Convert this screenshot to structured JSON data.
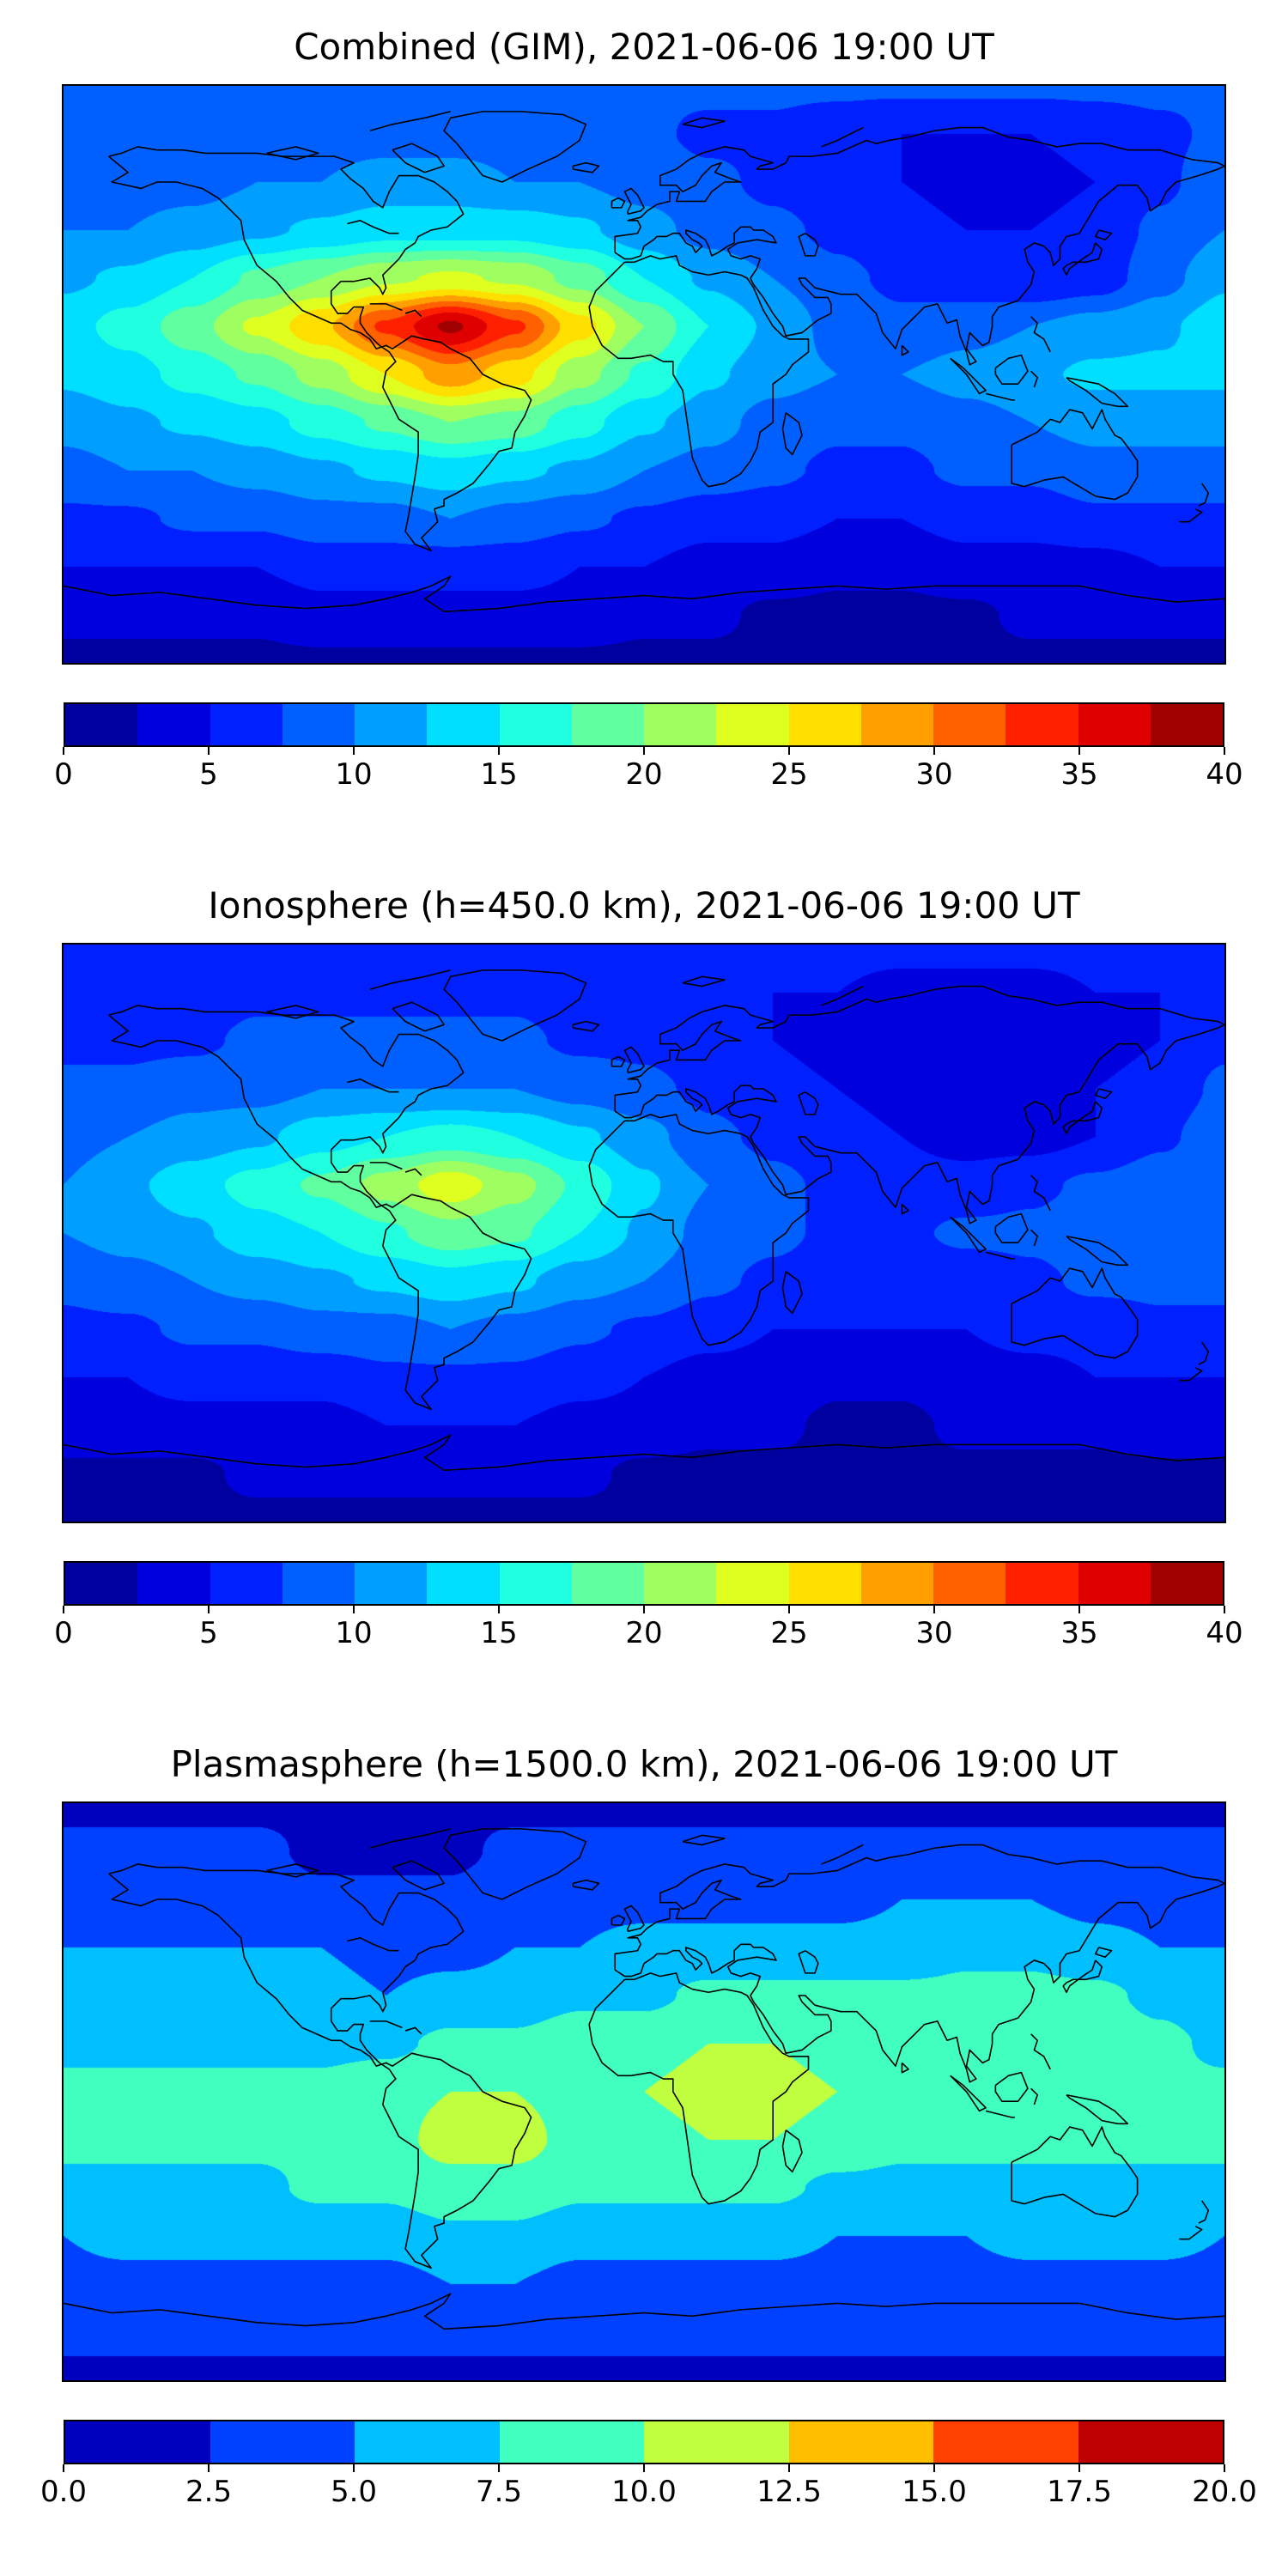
{
  "chart_data": [
    {
      "type": "heatmap",
      "title": "Combined (GIM), 2021-06-06 19:00 UT",
      "projection": "equirectangular",
      "lon_range": [
        -180,
        180
      ],
      "lat_range": [
        -90,
        90
      ],
      "colormap": "jet",
      "colorbar": {
        "min": 0,
        "max": 40,
        "segments": 16,
        "ticks": [
          "0",
          "5",
          "10",
          "15",
          "20",
          "25",
          "30",
          "35",
          "40"
        ]
      },
      "grid": {
        "lons": [
          -180,
          -160,
          -140,
          -120,
          -100,
          -80,
          -60,
          -40,
          -20,
          0,
          20,
          40,
          60,
          80,
          100,
          120,
          140,
          160,
          180
        ],
        "lats": [
          90,
          75,
          60,
          45,
          30,
          15,
          0,
          -15,
          -30,
          -45,
          -60,
          -75,
          -90
        ],
        "values": [
          [
            8,
            8,
            8,
            8,
            8,
            8,
            8,
            8,
            8,
            8,
            8,
            8,
            8,
            8,
            8,
            8,
            8,
            8,
            8
          ],
          [
            8,
            8,
            8,
            9,
            9,
            9,
            9,
            9,
            8,
            8,
            7,
            7,
            6,
            5,
            5,
            5,
            6,
            7,
            8
          ],
          [
            9,
            9,
            9,
            10,
            10,
            11,
            11,
            10,
            10,
            9,
            8,
            7,
            6,
            5,
            4,
            4,
            5,
            7,
            9
          ],
          [
            10,
            10,
            11,
            12,
            13,
            14,
            14,
            14,
            13,
            11,
            9,
            8,
            7,
            6,
            5,
            5,
            6,
            8,
            10
          ],
          [
            12,
            13,
            15,
            18,
            20,
            22,
            23,
            22,
            19,
            15,
            12,
            10,
            8,
            7,
            6,
            5,
            6,
            9,
            12
          ],
          [
            14,
            16,
            19,
            23,
            27,
            33,
            38,
            33,
            26,
            20,
            15,
            12,
            9,
            8,
            9,
            10,
            11,
            12,
            14
          ],
          [
            13,
            14,
            16,
            18,
            21,
            25,
            29,
            26,
            21,
            17,
            13,
            11,
            10,
            10,
            11,
            12,
            13,
            13,
            13
          ],
          [
            11,
            12,
            13,
            14,
            16,
            18,
            20,
            19,
            16,
            13,
            11,
            9,
            8,
            8,
            9,
            10,
            11,
            11,
            11
          ],
          [
            9,
            10,
            10,
            11,
            12,
            13,
            14,
            13,
            12,
            10,
            9,
            8,
            7,
            7,
            8,
            8,
            9,
            9,
            9
          ],
          [
            7,
            7,
            8,
            8,
            9,
            9,
            10,
            9,
            8,
            7,
            6,
            6,
            5,
            5,
            6,
            6,
            7,
            7,
            7
          ],
          [
            5,
            5,
            5,
            5,
            6,
            6,
            6,
            6,
            5,
            5,
            4,
            4,
            3,
            3,
            4,
            4,
            4,
            5,
            5
          ],
          [
            3,
            3,
            3,
            3,
            4,
            4,
            4,
            4,
            4,
            3,
            3,
            2,
            2,
            2,
            2,
            3,
            3,
            3,
            3
          ],
          [
            2,
            2,
            2,
            2,
            2,
            2,
            2,
            2,
            2,
            2,
            2,
            2,
            2,
            2,
            2,
            2,
            2,
            2,
            2
          ]
        ]
      }
    },
    {
      "type": "heatmap",
      "title": "Ionosphere  (h=450.0 km), 2021-06-06 19:00 UT",
      "projection": "equirectangular",
      "lon_range": [
        -180,
        180
      ],
      "lat_range": [
        -90,
        90
      ],
      "colormap": "jet",
      "colorbar": {
        "min": 0,
        "max": 40,
        "segments": 16,
        "ticks": [
          "0",
          "5",
          "10",
          "15",
          "20",
          "25",
          "30",
          "35",
          "40"
        ]
      },
      "grid": {
        "lons": [
          -180,
          -160,
          -140,
          -120,
          -100,
          -80,
          -60,
          -40,
          -20,
          0,
          20,
          40,
          60,
          80,
          100,
          120,
          140,
          160,
          180
        ],
        "lats": [
          90,
          75,
          60,
          45,
          30,
          15,
          0,
          -15,
          -30,
          -45,
          -60,
          -75,
          -90
        ],
        "values": [
          [
            6,
            6,
            6,
            6,
            6,
            6,
            6,
            6,
            6,
            6,
            6,
            6,
            6,
            6,
            6,
            6,
            6,
            6,
            6
          ],
          [
            6,
            6,
            6,
            7,
            7,
            7,
            7,
            7,
            6,
            6,
            6,
            5,
            5,
            4,
            4,
            4,
            5,
            5,
            6
          ],
          [
            7,
            7,
            7,
            8,
            8,
            8,
            8,
            8,
            7,
            7,
            6,
            5,
            4,
            4,
            3,
            3,
            4,
            5,
            7
          ],
          [
            8,
            8,
            9,
            9,
            10,
            10,
            10,
            10,
            9,
            8,
            7,
            6,
            5,
            4,
            4,
            4,
            5,
            6,
            8
          ],
          [
            9,
            10,
            11,
            12,
            14,
            15,
            16,
            15,
            13,
            11,
            8,
            7,
            6,
            5,
            4,
            4,
            5,
            7,
            9
          ],
          [
            10,
            12,
            14,
            16,
            18,
            21,
            24,
            21,
            17,
            13,
            10,
            8,
            7,
            6,
            6,
            7,
            8,
            9,
            10
          ],
          [
            10,
            11,
            12,
            14,
            15,
            17,
            19,
            18,
            15,
            12,
            9,
            8,
            7,
            7,
            8,
            8,
            9,
            9,
            10
          ],
          [
            8,
            9,
            10,
            11,
            12,
            13,
            14,
            13,
            11,
            10,
            8,
            7,
            6,
            6,
            6,
            7,
            8,
            8,
            8
          ],
          [
            7,
            7,
            8,
            8,
            9,
            9,
            10,
            9,
            8,
            7,
            6,
            5,
            5,
            5,
            5,
            6,
            6,
            7,
            7
          ],
          [
            5,
            5,
            6,
            6,
            6,
            7,
            7,
            7,
            6,
            5,
            4,
            4,
            3,
            3,
            4,
            4,
            5,
            5,
            5
          ],
          [
            4,
            4,
            4,
            4,
            4,
            5,
            5,
            5,
            4,
            4,
            3,
            3,
            2,
            2,
            3,
            3,
            3,
            4,
            4
          ],
          [
            2,
            2,
            2,
            3,
            3,
            3,
            3,
            3,
            3,
            2,
            2,
            2,
            2,
            2,
            2,
            2,
            2,
            2,
            2
          ],
          [
            2,
            2,
            2,
            2,
            2,
            2,
            2,
            2,
            2,
            2,
            2,
            2,
            2,
            2,
            2,
            2,
            2,
            2,
            2
          ]
        ]
      }
    },
    {
      "type": "heatmap",
      "title": "Plasmasphere (h=1500.0 km), 2021-06-06 19:00 UT",
      "projection": "equirectangular",
      "lon_range": [
        -180,
        180
      ],
      "lat_range": [
        -90,
        90
      ],
      "colormap": "jet",
      "colorbar": {
        "min": 0,
        "max": 20,
        "segments": 8,
        "ticks": [
          "0.0",
          "2.5",
          "5.0",
          "7.5",
          "10.0",
          "12.5",
          "15.0",
          "17.5",
          "20.0"
        ]
      },
      "grid": {
        "lons": [
          -180,
          -160,
          -140,
          -120,
          -100,
          -80,
          -60,
          -40,
          -20,
          0,
          20,
          40,
          60,
          80,
          100,
          120,
          140,
          160,
          180
        ],
        "lats": [
          90,
          75,
          60,
          45,
          30,
          15,
          0,
          -15,
          -30,
          -45,
          -60,
          -75,
          -90
        ],
        "values": [
          [
            2,
            2,
            2,
            2,
            2,
            2,
            2,
            2,
            2,
            2,
            2,
            2,
            2,
            2,
            2,
            2,
            2,
            2,
            2
          ],
          [
            3,
            3,
            3,
            3,
            2,
            2,
            2,
            3,
            3,
            3,
            3,
            3,
            3,
            3,
            3,
            3,
            3,
            3,
            3
          ],
          [
            4,
            4,
            4,
            4,
            3,
            3,
            3,
            4,
            4,
            4,
            4,
            4,
            4,
            5,
            5,
            5,
            4,
            4,
            4
          ],
          [
            5,
            5,
            5,
            5,
            5,
            4,
            4,
            5,
            5,
            6,
            6,
            6,
            6,
            6,
            7,
            7,
            6,
            5,
            5
          ],
          [
            6,
            6,
            6,
            6,
            6,
            5,
            6,
            6,
            7,
            7,
            8,
            8,
            8,
            8,
            8,
            8,
            8,
            7,
            6
          ],
          [
            7,
            7,
            7,
            7,
            7,
            7,
            8,
            8,
            9,
            9,
            10,
            10,
            9,
            9,
            9,
            10,
            9,
            8,
            7
          ],
          [
            8,
            8,
            8,
            8,
            8,
            9,
            10,
            10,
            9,
            10,
            11,
            11,
            10,
            9,
            9,
            9,
            9,
            8,
            8
          ],
          [
            8,
            8,
            8,
            8,
            8,
            9,
            11,
            11,
            9,
            9,
            10,
            10,
            9,
            8,
            8,
            8,
            8,
            8,
            8
          ],
          [
            7,
            7,
            7,
            7,
            8,
            8,
            9,
            9,
            8,
            8,
            8,
            8,
            7,
            7,
            7,
            7,
            7,
            7,
            7
          ],
          [
            5,
            6,
            6,
            6,
            6,
            6,
            7,
            7,
            6,
            6,
            6,
            6,
            5,
            5,
            5,
            6,
            6,
            6,
            5
          ],
          [
            4,
            4,
            4,
            4,
            4,
            4,
            5,
            5,
            4,
            4,
            4,
            4,
            4,
            4,
            4,
            4,
            4,
            4,
            4
          ],
          [
            3,
            3,
            3,
            3,
            3,
            3,
            3,
            3,
            3,
            3,
            3,
            3,
            3,
            3,
            3,
            3,
            3,
            3,
            3
          ],
          [
            2,
            2,
            2,
            2,
            2,
            2,
            2,
            2,
            2,
            2,
            2,
            2,
            2,
            2,
            2,
            2,
            2,
            2,
            2
          ]
        ]
      }
    }
  ]
}
